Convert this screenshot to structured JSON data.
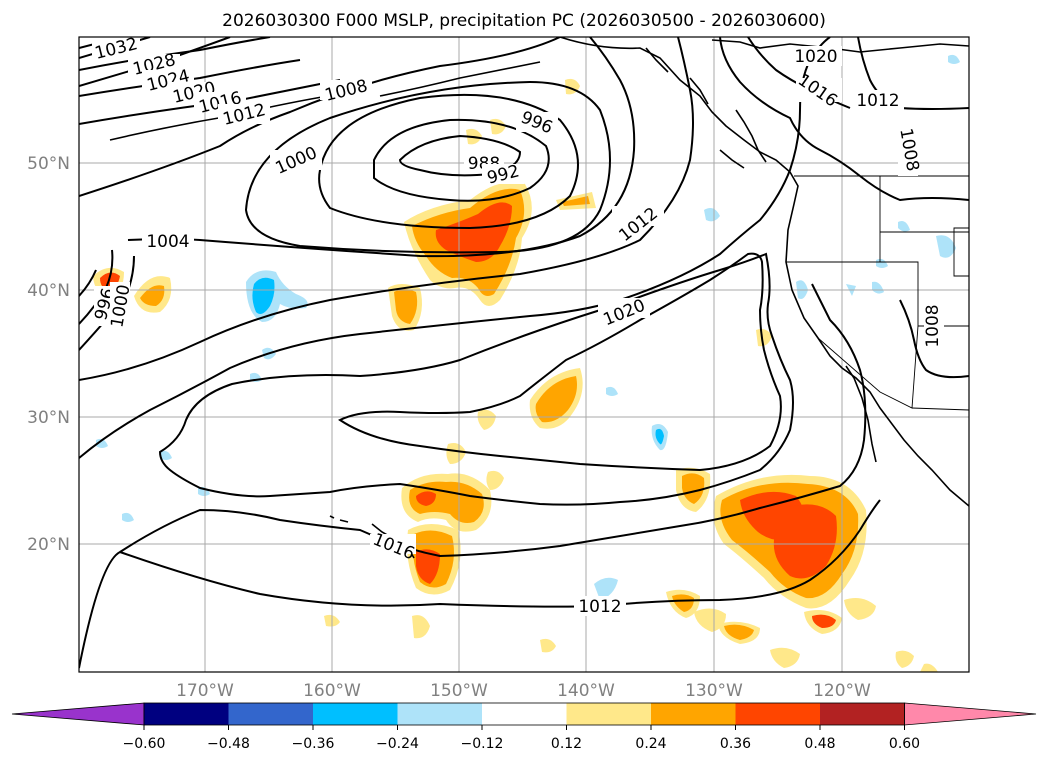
{
  "title": "2026030300 F000 MSLP, precipitation PC (2026030500 - 2026030600)",
  "map": {
    "lon_labels": [
      "170°W",
      "160°W",
      "150°W",
      "140°W",
      "130°W",
      "120°W"
    ],
    "lat_labels": [
      "50°N",
      "40°N",
      "30°N",
      "20°N"
    ],
    "lon_range": [
      -180,
      -110
    ],
    "lat_range": [
      10,
      60
    ],
    "gridlines": true,
    "isobars_hpa": [
      988,
      992,
      996,
      1000,
      1004,
      1008,
      1012,
      1016,
      1020,
      1024,
      1028,
      1032
    ],
    "isobar_labels": [
      "1032",
      "1028",
      "1024",
      "1020",
      "1016",
      "1012",
      "1008",
      "1000",
      "996",
      "988",
      "992",
      "1004",
      "996",
      "1000",
      "1012",
      "1020",
      "1016",
      "1012",
      "1020",
      "1016",
      "1012",
      "1008",
      "1008"
    ]
  },
  "colorbar": {
    "tick_labels": [
      "−0.60",
      "−0.48",
      "−0.36",
      "−0.24",
      "−0.12",
      "0.12",
      "0.24",
      "0.36",
      "0.48",
      "0.60"
    ],
    "bin_colors": [
      "#9933cc",
      "#000080",
      "#3366cc",
      "#00bfff",
      "#aee3f9",
      "#ffffff",
      "#ffe88a",
      "#ffa500",
      "#ff4500",
      "#b22222",
      "#ff88aa"
    ],
    "extend": "both"
  }
}
